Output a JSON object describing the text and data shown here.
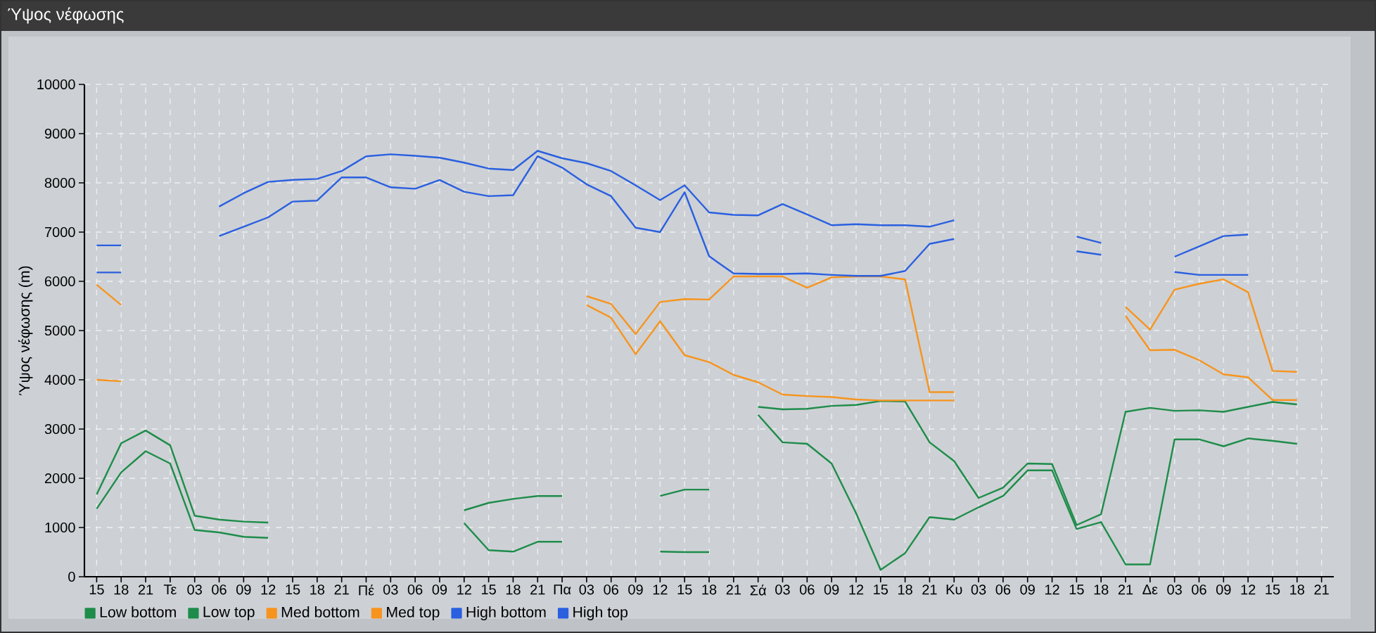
{
  "chart_data": {
    "type": "line",
    "title": "Ύψος νέφωσης",
    "ylabel": "Ύψος νέφωσης (m)",
    "categories": [
      "15",
      "18",
      "21",
      "Τε",
      "03",
      "06",
      "09",
      "12",
      "15",
      "18",
      "21",
      "Πέ",
      "03",
      "06",
      "09",
      "12",
      "15",
      "18",
      "21",
      "Πα",
      "03",
      "06",
      "09",
      "12",
      "15",
      "18",
      "21",
      "Σά",
      "03",
      "06",
      "09",
      "12",
      "15",
      "18",
      "21",
      "Κυ",
      "03",
      "06",
      "09",
      "12",
      "15",
      "18",
      "21",
      "Δε",
      "03",
      "06",
      "09",
      "12",
      "15",
      "18",
      "21"
    ],
    "series": [
      {
        "name": "Low bottom",
        "color": "#1e8c4a",
        "values": [
          1380,
          2120,
          2550,
          2300,
          950,
          900,
          810,
          790,
          null,
          null,
          null,
          null,
          null,
          null,
          null,
          1090,
          540,
          510,
          710,
          710,
          null,
          null,
          null,
          510,
          500,
          500,
          null,
          3290,
          2730,
          2700,
          2300,
          1290,
          140,
          480,
          1210,
          1160,
          1410,
          1640,
          2160,
          2160,
          970,
          1110,
          250,
          250,
          2790,
          2790,
          2650,
          2810,
          2760,
          2700,
          null
        ]
      },
      {
        "name": "Low top",
        "color": "#1e8c4a",
        "values": [
          1670,
          2710,
          2970,
          2670,
          1240,
          1160,
          1120,
          1100,
          null,
          null,
          null,
          null,
          null,
          null,
          null,
          1350,
          1500,
          1580,
          1640,
          1640,
          null,
          null,
          null,
          1640,
          1770,
          1770,
          null,
          3450,
          3400,
          3410,
          3470,
          3490,
          3570,
          3560,
          2730,
          2350,
          1600,
          1810,
          2300,
          2290,
          1050,
          1270,
          3350,
          3430,
          3370,
          3380,
          3350,
          3450,
          3550,
          3500,
          null
        ]
      },
      {
        "name": "Med bottom",
        "color": "#f7941e",
        "values": [
          4000,
          3970,
          null,
          null,
          null,
          null,
          null,
          null,
          null,
          null,
          null,
          null,
          null,
          null,
          null,
          null,
          null,
          null,
          null,
          null,
          5520,
          5260,
          4520,
          5190,
          4500,
          4360,
          4100,
          3950,
          3700,
          3670,
          3650,
          3600,
          3580,
          3580,
          3580,
          3580,
          null,
          null,
          null,
          null,
          null,
          null,
          5300,
          4600,
          4610,
          4400,
          4110,
          4050,
          3590,
          3590,
          null
        ]
      },
      {
        "name": "Med top",
        "color": "#f7941e",
        "values": [
          5930,
          5520,
          null,
          null,
          null,
          null,
          null,
          null,
          null,
          null,
          null,
          null,
          null,
          null,
          null,
          null,
          null,
          null,
          null,
          null,
          5700,
          5540,
          4930,
          5580,
          5640,
          5630,
          6100,
          6100,
          6100,
          5870,
          6080,
          6100,
          6100,
          6040,
          3750,
          3750,
          null,
          null,
          null,
          null,
          null,
          null,
          5480,
          5020,
          5830,
          5950,
          6040,
          5780,
          4180,
          4160,
          null
        ]
      },
      {
        "name": "High bottom",
        "color": "#2a5fe0",
        "values": [
          6180,
          6180,
          null,
          null,
          null,
          6920,
          7110,
          7300,
          7620,
          7640,
          8110,
          8110,
          7910,
          7880,
          8060,
          7820,
          7730,
          7750,
          8540,
          8310,
          7970,
          7730,
          7090,
          7000,
          7810,
          6510,
          6160,
          6150,
          6150,
          6160,
          6130,
          6110,
          6110,
          6210,
          6760,
          6860,
          null,
          null,
          null,
          null,
          6610,
          6540,
          null,
          null,
          6190,
          6130,
          6130,
          6130,
          null,
          null,
          null
        ]
      },
      {
        "name": "High top",
        "color": "#2a5fe0",
        "values": [
          6730,
          6730,
          null,
          null,
          null,
          7520,
          7790,
          8020,
          8060,
          8080,
          8240,
          8540,
          8580,
          8550,
          8510,
          8410,
          8290,
          8260,
          8650,
          8500,
          8400,
          8240,
          7950,
          7650,
          7950,
          7400,
          7350,
          7340,
          7570,
          7360,
          7140,
          7160,
          7140,
          7140,
          7110,
          7240,
          null,
          null,
          null,
          null,
          6910,
          6780,
          null,
          null,
          6500,
          6710,
          6920,
          6950,
          null,
          null,
          null
        ]
      }
    ],
    "ylim": [
      0,
      10000
    ],
    "yticks": [
      0,
      1000,
      2000,
      3000,
      4000,
      5000,
      6000,
      7000,
      8000,
      9000,
      10000
    ],
    "grid": true,
    "legend": "bottom left"
  }
}
